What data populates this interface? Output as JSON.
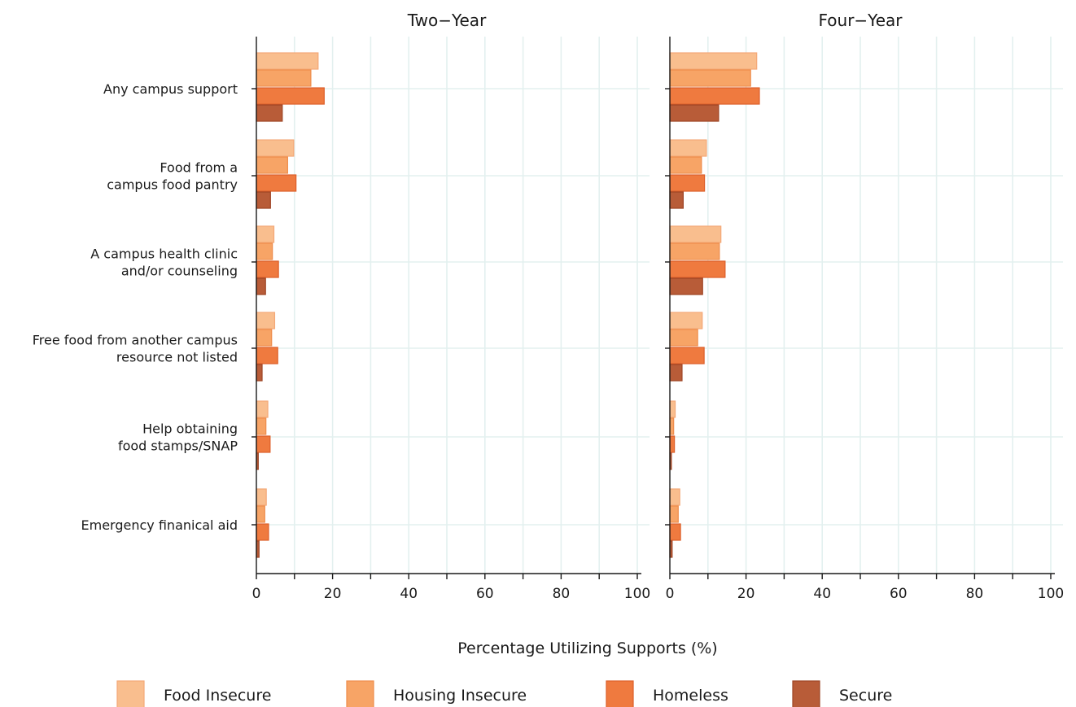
{
  "chart_data": {
    "type": "bar",
    "orientation": "horizontal",
    "xlabel": "Percentage Utilizing Supports (%)",
    "xlim": [
      0,
      100
    ],
    "xticks": [
      "0",
      "20",
      "40",
      "60",
      "80",
      "100"
    ],
    "grid": true,
    "legend_position": "bottom",
    "categories": [
      [
        "Any campus support"
      ],
      [
        "Food from a",
        "campus food pantry"
      ],
      [
        "A campus health clinic",
        "and/or counseling"
      ],
      [
        "Free food from another campus",
        "resource not listed"
      ],
      [
        "Help obtaining",
        "food stamps/SNAP"
      ],
      [
        "Emergency finanical aid"
      ]
    ],
    "series_names": [
      "Food Insecure",
      "Housing Insecure",
      "Homeless",
      "Secure"
    ],
    "series_colors": [
      "#f9be8e",
      "#f7a466",
      "#ef7a3f",
      "#b85c38"
    ],
    "series_stroke": [
      "#f4a877",
      "#ee8d4c",
      "#dd5f2a",
      "#9e4526"
    ],
    "panels": [
      {
        "title": "Two−Year",
        "series": [
          {
            "name": "Food Insecure",
            "values": [
              16.2,
              9.8,
              4.6,
              4.8,
              3.0,
              2.6
            ]
          },
          {
            "name": "Housing Insecure",
            "values": [
              14.3,
              8.2,
              4.2,
              4.0,
              2.5,
              2.2
            ]
          },
          {
            "name": "Homeless",
            "values": [
              17.8,
              10.4,
              5.8,
              5.6,
              3.6,
              3.2
            ]
          },
          {
            "name": "Secure",
            "values": [
              6.8,
              3.7,
              2.4,
              1.5,
              0.5,
              0.7
            ]
          }
        ]
      },
      {
        "title": "Four−Year",
        "series": [
          {
            "name": "Food Insecure",
            "values": [
              22.8,
              9.6,
              13.4,
              8.5,
              1.4,
              2.6
            ]
          },
          {
            "name": "Housing Insecure",
            "values": [
              21.2,
              8.3,
              13.0,
              7.3,
              1.0,
              2.2
            ]
          },
          {
            "name": "Homeless",
            "values": [
              23.5,
              9.1,
              14.5,
              9.0,
              1.2,
              2.8
            ]
          },
          {
            "name": "Secure",
            "values": [
              12.8,
              3.5,
              8.6,
              3.2,
              0.4,
              0.6
            ]
          }
        ]
      }
    ]
  }
}
